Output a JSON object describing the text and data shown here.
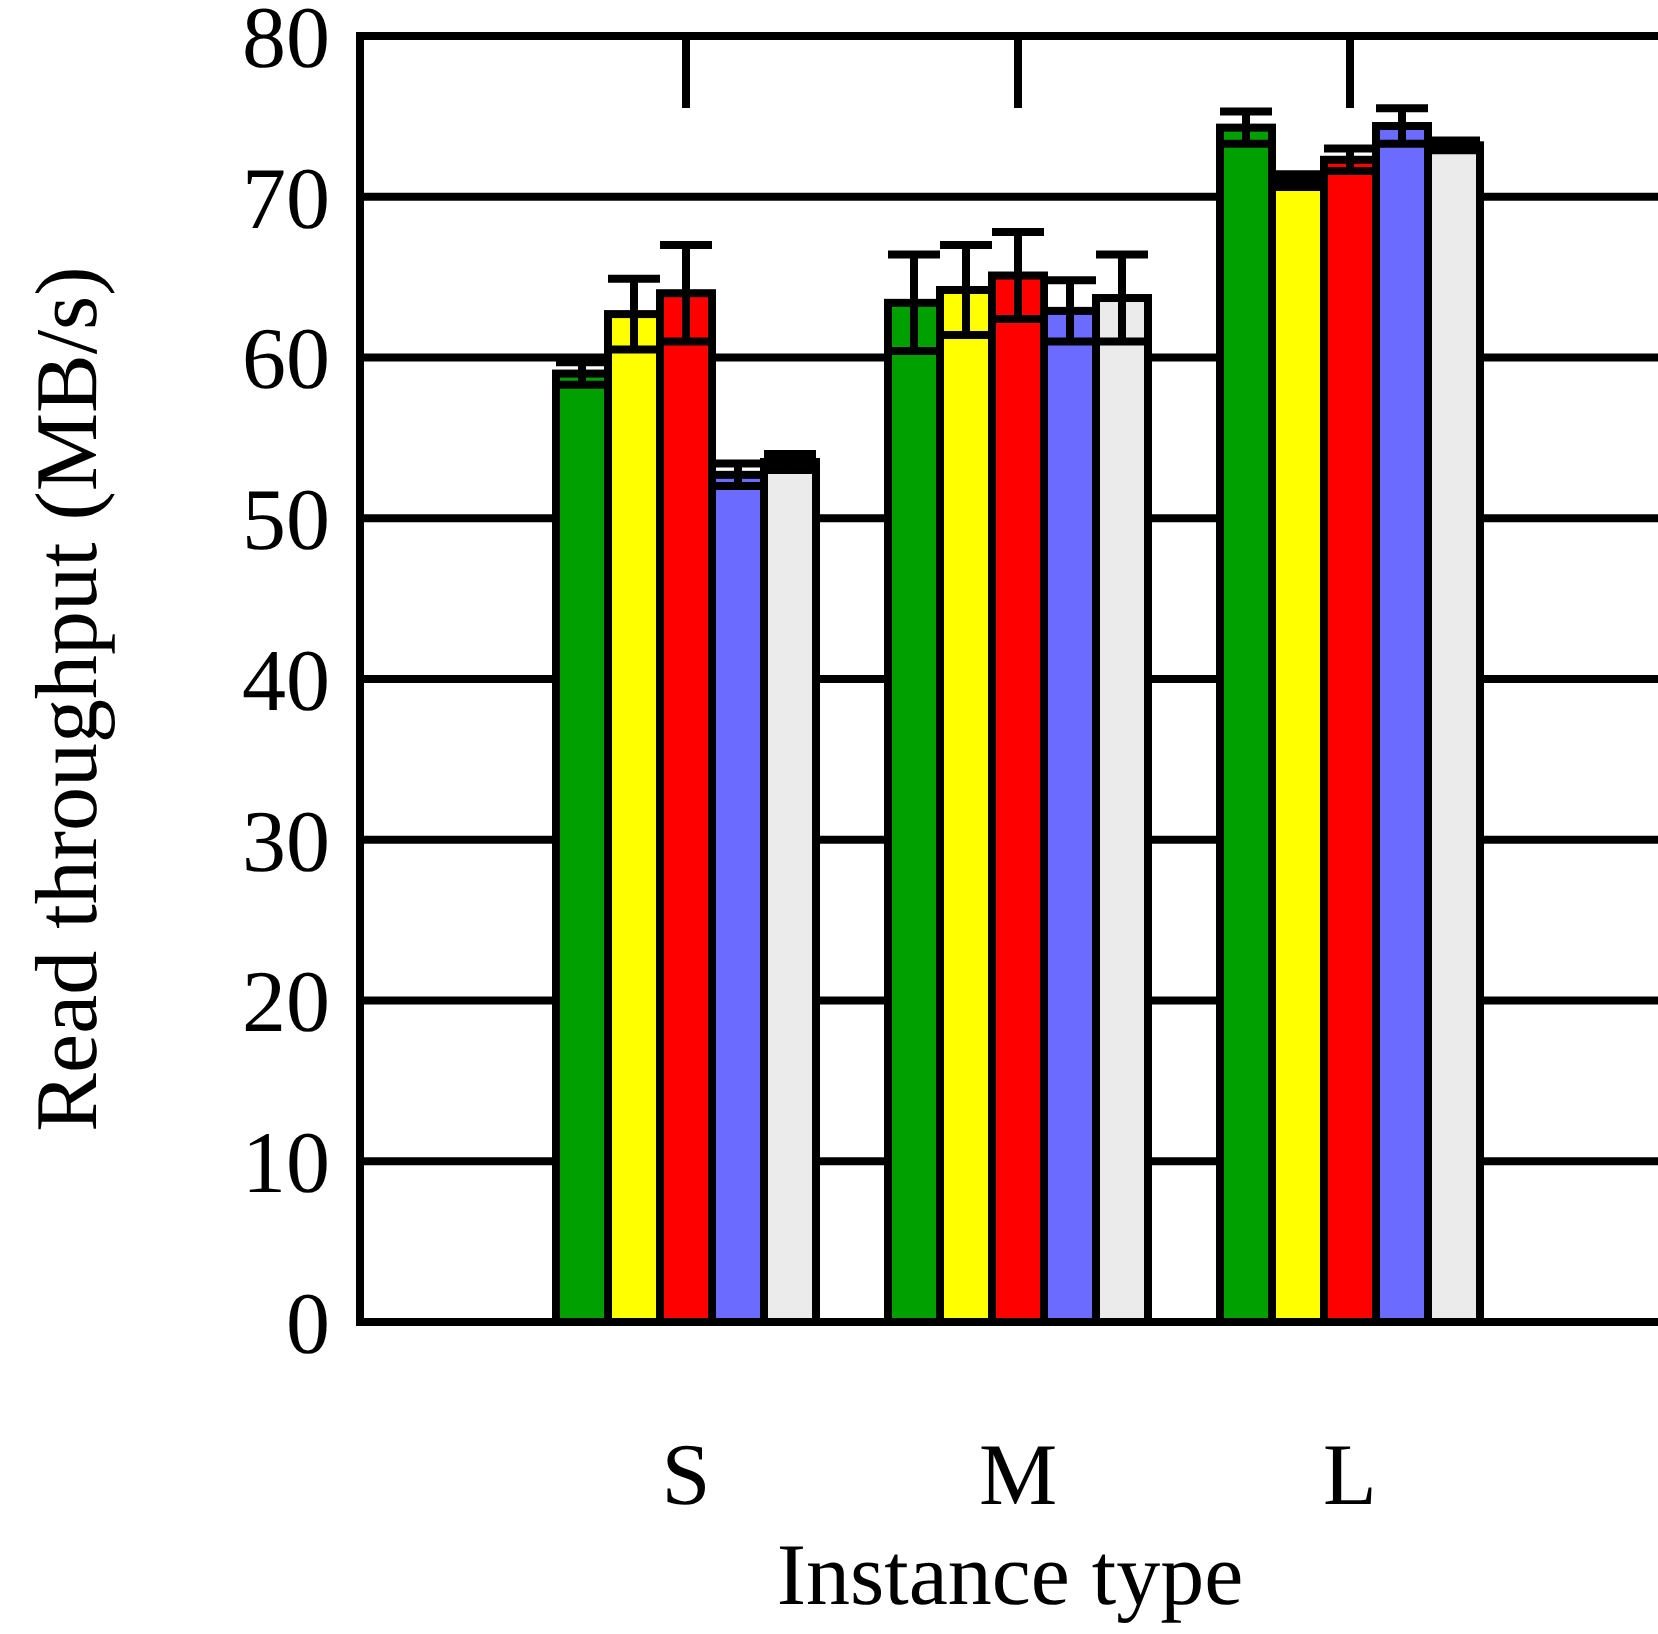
{
  "chart_data": {
    "type": "bar",
    "xlabel": "Instance type",
    "ylabel": "Read throughput (MB/s)",
    "categories": [
      "S",
      "M",
      "L"
    ],
    "series": [
      {
        "color": "#00a000",
        "values": [
          59.0,
          63.4,
          74.3
        ],
        "errors": [
          0.7,
          3,
          1
        ]
      },
      {
        "color": "#ffff00",
        "values": [
          62.7,
          64.2,
          71.0
        ],
        "errors": [
          2.2,
          2.8,
          0.4
        ]
      },
      {
        "color": "#ff0000",
        "values": [
          64.0,
          65.1,
          72.3
        ],
        "errors": [
          3,
          2.7,
          0.7
        ]
      },
      {
        "color": "#6b6bff",
        "values": [
          52.7,
          62.9,
          74.4
        ],
        "errors": [
          0.7,
          1.9,
          1.1
        ]
      },
      {
        "color": "#ebebeb",
        "values": [
          53.5,
          63.7,
          73.2
        ],
        "errors": [
          0.5,
          2.7,
          0.3
        ]
      }
    ],
    "ylim": [
      0,
      80
    ],
    "yticks": [
      0,
      10,
      20,
      30,
      40,
      50,
      60,
      70,
      80
    ],
    "grid": "y"
  }
}
